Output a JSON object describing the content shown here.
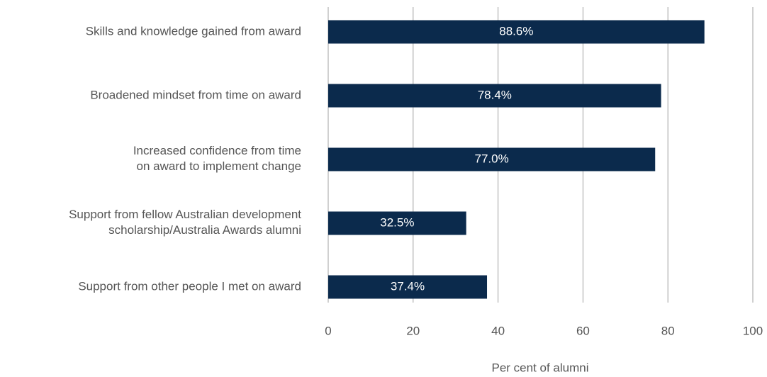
{
  "chart_data": {
    "type": "hbar",
    "categories": [
      "Skills and knowledge gained from award",
      "Broadened mindset from time on award",
      "Increased confidence from time\non award to implement change",
      "Support from fellow Australian development\nscholarship/Australia Awards alumni",
      "Support from other people I met on award"
    ],
    "values": [
      88.6,
      78.4,
      77.0,
      32.5,
      37.4
    ],
    "value_labels": [
      "88.6%",
      "78.4%",
      "77.0%",
      "32.5%",
      "37.4%"
    ],
    "color": "#0b2a4c",
    "xlim": [
      0,
      100
    ],
    "xticks": [
      0,
      20,
      40,
      60,
      80,
      100
    ],
    "grid": true,
    "x_label": "Per cent of alumni"
  }
}
